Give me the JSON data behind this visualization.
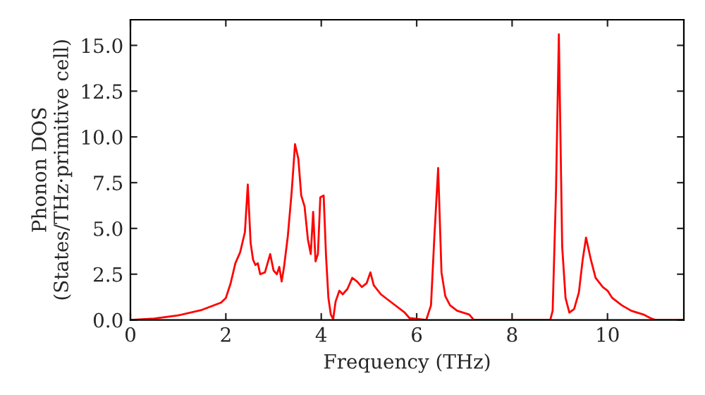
{
  "chart_data": {
    "type": "line",
    "xlabel": "Frequency (THz)",
    "ylabel": "Phonon DOS\n(States/THz·primitive cell)",
    "xlim": [
      0,
      11.6
    ],
    "ylim": [
      0,
      16.4
    ],
    "xticks": [
      0,
      2,
      4,
      6,
      8,
      10
    ],
    "yticks": [
      {
        "value": 0,
        "label": "0.0"
      },
      {
        "value": 2.5,
        "label": "2.5"
      },
      {
        "value": 5,
        "label": "5.0"
      },
      {
        "value": 7.5,
        "label": "7.5"
      },
      {
        "value": 10,
        "label": "10.0"
      },
      {
        "value": 12.5,
        "label": "12.5"
      },
      {
        "value": 15,
        "label": "15.0"
      }
    ],
    "grid": false,
    "legend": false,
    "line_style": "solid",
    "marker": "none",
    "series": [
      {
        "color": "#ff0000",
        "x": [
          0,
          0.5,
          1.0,
          1.5,
          1.9,
          2.0,
          2.1,
          2.2,
          2.3,
          2.4,
          2.46,
          2.52,
          2.57,
          2.62,
          2.67,
          2.72,
          2.82,
          2.93,
          3.0,
          3.07,
          3.12,
          3.17,
          3.22,
          3.3,
          3.38,
          3.45,
          3.52,
          3.58,
          3.65,
          3.72,
          3.78,
          3.83,
          3.88,
          3.93,
          3.98,
          4.05,
          4.1,
          4.15,
          4.2,
          4.25,
          4.3,
          4.38,
          4.45,
          4.55,
          4.65,
          4.75,
          4.85,
          4.95,
          5.03,
          5.1,
          5.25,
          5.5,
          5.75,
          5.85,
          6.2,
          6.3,
          6.37,
          6.45,
          6.52,
          6.6,
          6.7,
          6.85,
          7.1,
          7.2,
          8.8,
          8.85,
          8.92,
          8.98,
          9.05,
          9.12,
          9.2,
          9.3,
          9.4,
          9.48,
          9.55,
          9.65,
          9.75,
          9.9,
          10.0,
          10.1,
          10.3,
          10.5,
          10.75,
          10.9,
          11.0,
          11.6
        ],
        "values": [
          0,
          0.08,
          0.25,
          0.55,
          0.95,
          1.2,
          2.0,
          3.1,
          3.7,
          4.8,
          7.4,
          4.2,
          3.3,
          3.0,
          3.1,
          2.5,
          2.6,
          3.6,
          2.7,
          2.5,
          2.9,
          2.1,
          2.9,
          4.6,
          7.0,
          9.6,
          8.8,
          6.8,
          6.2,
          4.4,
          3.6,
          5.9,
          3.2,
          3.6,
          6.7,
          6.8,
          3.5,
          1.2,
          0.3,
          0.05,
          1.0,
          1.6,
          1.4,
          1.7,
          2.3,
          2.1,
          1.8,
          2.0,
          2.6,
          1.9,
          1.4,
          0.9,
          0.4,
          0.1,
          0.0,
          0.8,
          4.5,
          8.3,
          2.6,
          1.3,
          0.8,
          0.5,
          0.3,
          0.0,
          0.0,
          0.5,
          7.0,
          15.6,
          4.0,
          1.2,
          0.4,
          0.6,
          1.5,
          3.3,
          4.5,
          3.3,
          2.3,
          1.8,
          1.6,
          1.2,
          0.8,
          0.5,
          0.3,
          0.1,
          0.0,
          0.0
        ]
      }
    ]
  }
}
